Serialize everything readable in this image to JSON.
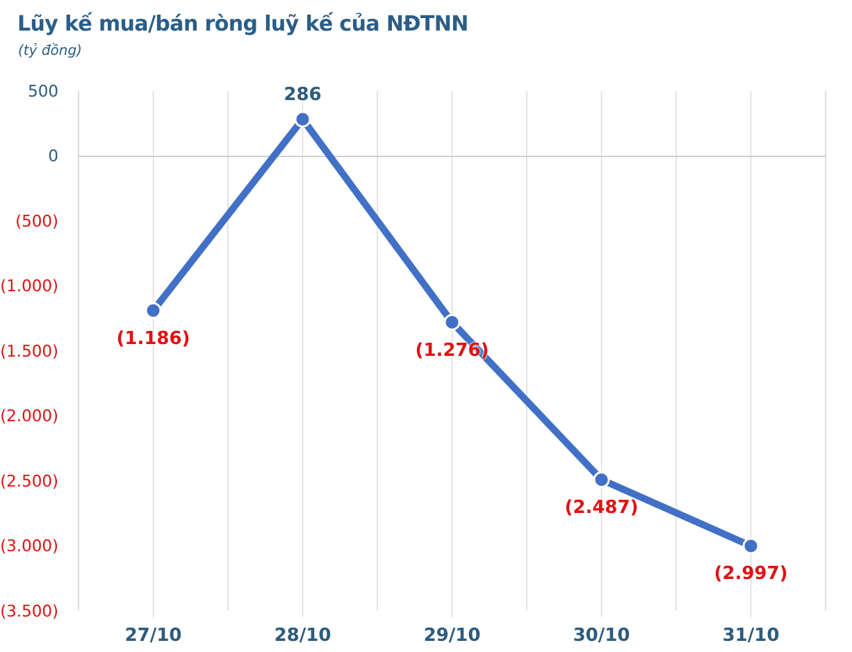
{
  "header": {
    "title": "Lũy kế mua/bán ròng luỹ kế của NĐTNN",
    "subtitle": "(tỷ đồng)"
  },
  "colors": {
    "background": "#FFFFFF",
    "line": "#4170C6",
    "marker_fill": "#4170C6",
    "marker_ring": "#FFFFFF",
    "title_text": "#2B5E87",
    "axis_label_text": "#2E5B7E",
    "positive_text": "#2E5B7E",
    "negative_text": "#E01212",
    "gridline": "#D9D9D9",
    "zero_line": "#CFCFCF"
  },
  "chart_data": {
    "type": "line",
    "title": "Lũy kế mua/bán ròng luỹ kế của NĐTNN",
    "unit_note": "(tỷ đồng)",
    "categories": [
      "27/10",
      "28/10",
      "29/10",
      "30/10",
      "31/10"
    ],
    "values": [
      -1186,
      286,
      -1276,
      -2487,
      -2997
    ],
    "point_labels": [
      "(1.186)",
      "286",
      "(1.276)",
      "(2.487)",
      "(2.997)"
    ],
    "label_placement": [
      "below",
      "above",
      "below",
      "below",
      "below"
    ],
    "y_ticks": [
      500,
      0,
      -500,
      -1000,
      -1500,
      -2000,
      -2500,
      -3000,
      -3500
    ],
    "y_tick_labels": [
      "500",
      "0",
      "(500)",
      "(1.000)",
      "(1.500)",
      "(2.000)",
      "(2.500)",
      "(3.000)",
      "(3.500)"
    ],
    "ylim": [
      -3500,
      500
    ],
    "grid": "vertical gridlines at half-category steps; single horizontal line at 0",
    "legend": "none",
    "negative_style": "red text in parentheses, dot as thousands separator"
  }
}
